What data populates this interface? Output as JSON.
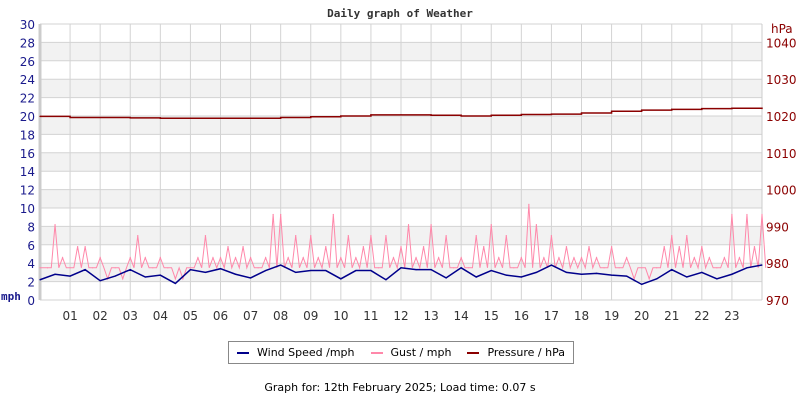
{
  "chart_data": {
    "type": "line",
    "title": "Daily graph of Weather",
    "x_tick_labels": [
      "01",
      "02",
      "03",
      "04",
      "05",
      "06",
      "07",
      "08",
      "09",
      "10",
      "11",
      "12",
      "13",
      "14",
      "15",
      "16",
      "17",
      "18",
      "19",
      "20",
      "21",
      "22",
      "23"
    ],
    "xlim_hours": [
      0,
      24
    ],
    "left_axis": {
      "label": "mph",
      "ylim": [
        0,
        30
      ],
      "ticks": [
        0,
        2,
        4,
        6,
        8,
        10,
        12,
        14,
        16,
        18,
        20,
        22,
        24,
        26,
        28,
        30
      ],
      "color": "#1a1a8c"
    },
    "right_axis": {
      "label": "hPa",
      "ylim": [
        970,
        1045
      ],
      "ticks": [
        970,
        980,
        990,
        1000,
        1010,
        1020,
        1030,
        1040
      ],
      "color": "#8b0000"
    },
    "grid": true,
    "legend_placement": "bottom",
    "series": [
      {
        "name": "Wind Speed /mph",
        "color": "#00008b",
        "axis": "left",
        "interval_hours": 0.5,
        "values": [
          2.2,
          2.8,
          2.6,
          3.3,
          2.1,
          2.6,
          3.3,
          2.5,
          2.7,
          1.8,
          3.3,
          3.0,
          3.4,
          2.8,
          2.4,
          3.2,
          3.8,
          3.0,
          3.2,
          3.2,
          2.3,
          3.2,
          3.2,
          2.2,
          3.5,
          3.3,
          3.3,
          2.4,
          3.5,
          2.5,
          3.2,
          2.7,
          2.5,
          3.0,
          3.8,
          3.0,
          2.8,
          2.9,
          2.7,
          2.6,
          1.7,
          2.3,
          3.3,
          2.5,
          3.0,
          2.3,
          2.8,
          3.5,
          3.8
        ]
      },
      {
        "name": "Gust / mph",
        "color": "#ff88aa",
        "axis": "left",
        "interval_hours": 0.25,
        "values": [
          3.5,
          3.5,
          8.2,
          4.6,
          3.5,
          5.8,
          5.8,
          3.5,
          4.6,
          2.3,
          3.5,
          2.3,
          4.6,
          7.0,
          4.6,
          3.5,
          4.6,
          3.5,
          2.3,
          2.3,
          3.5,
          4.6,
          7.0,
          4.6,
          4.6,
          5.8,
          4.6,
          5.8,
          4.6,
          3.5,
          4.6,
          9.3,
          9.3,
          4.6,
          7.0,
          4.6,
          7.0,
          4.6,
          5.8,
          9.3,
          4.6,
          7.0,
          4.6,
          5.8,
          7.0,
          3.5,
          7.0,
          4.6,
          5.8,
          8.2,
          4.6,
          5.8,
          8.2,
          4.6,
          7.0,
          3.5,
          4.6,
          3.5,
          7.0,
          5.8,
          8.2,
          4.6,
          7.0,
          3.5,
          4.6,
          10.4,
          8.2,
          4.6,
          7.0,
          4.6,
          5.8,
          4.6,
          4.6,
          5.8,
          4.6,
          3.5,
          5.8,
          3.5,
          4.6,
          2.3,
          3.5,
          2.3,
          3.5,
          5.8,
          7.0,
          5.8,
          7.0,
          4.6,
          5.8,
          4.6,
          3.5,
          4.6,
          9.3,
          4.6,
          9.3,
          5.8,
          9.3
        ]
      },
      {
        "name": "Pressure / hPa",
        "color": "#8b0000",
        "axis": "right",
        "interval_hours": 1,
        "values": [
          1019.9,
          1019.6,
          1019.6,
          1019.5,
          1019.4,
          1019.4,
          1019.4,
          1019.4,
          1019.6,
          1019.8,
          1020.0,
          1020.3,
          1020.3,
          1020.2,
          1020.0,
          1020.2,
          1020.4,
          1020.5,
          1020.8,
          1021.3,
          1021.6,
          1021.8,
          1022.0,
          1022.1,
          1022.0
        ]
      }
    ]
  },
  "footer": "Graph for: 12th February 2025; Load time: 0.07 s"
}
